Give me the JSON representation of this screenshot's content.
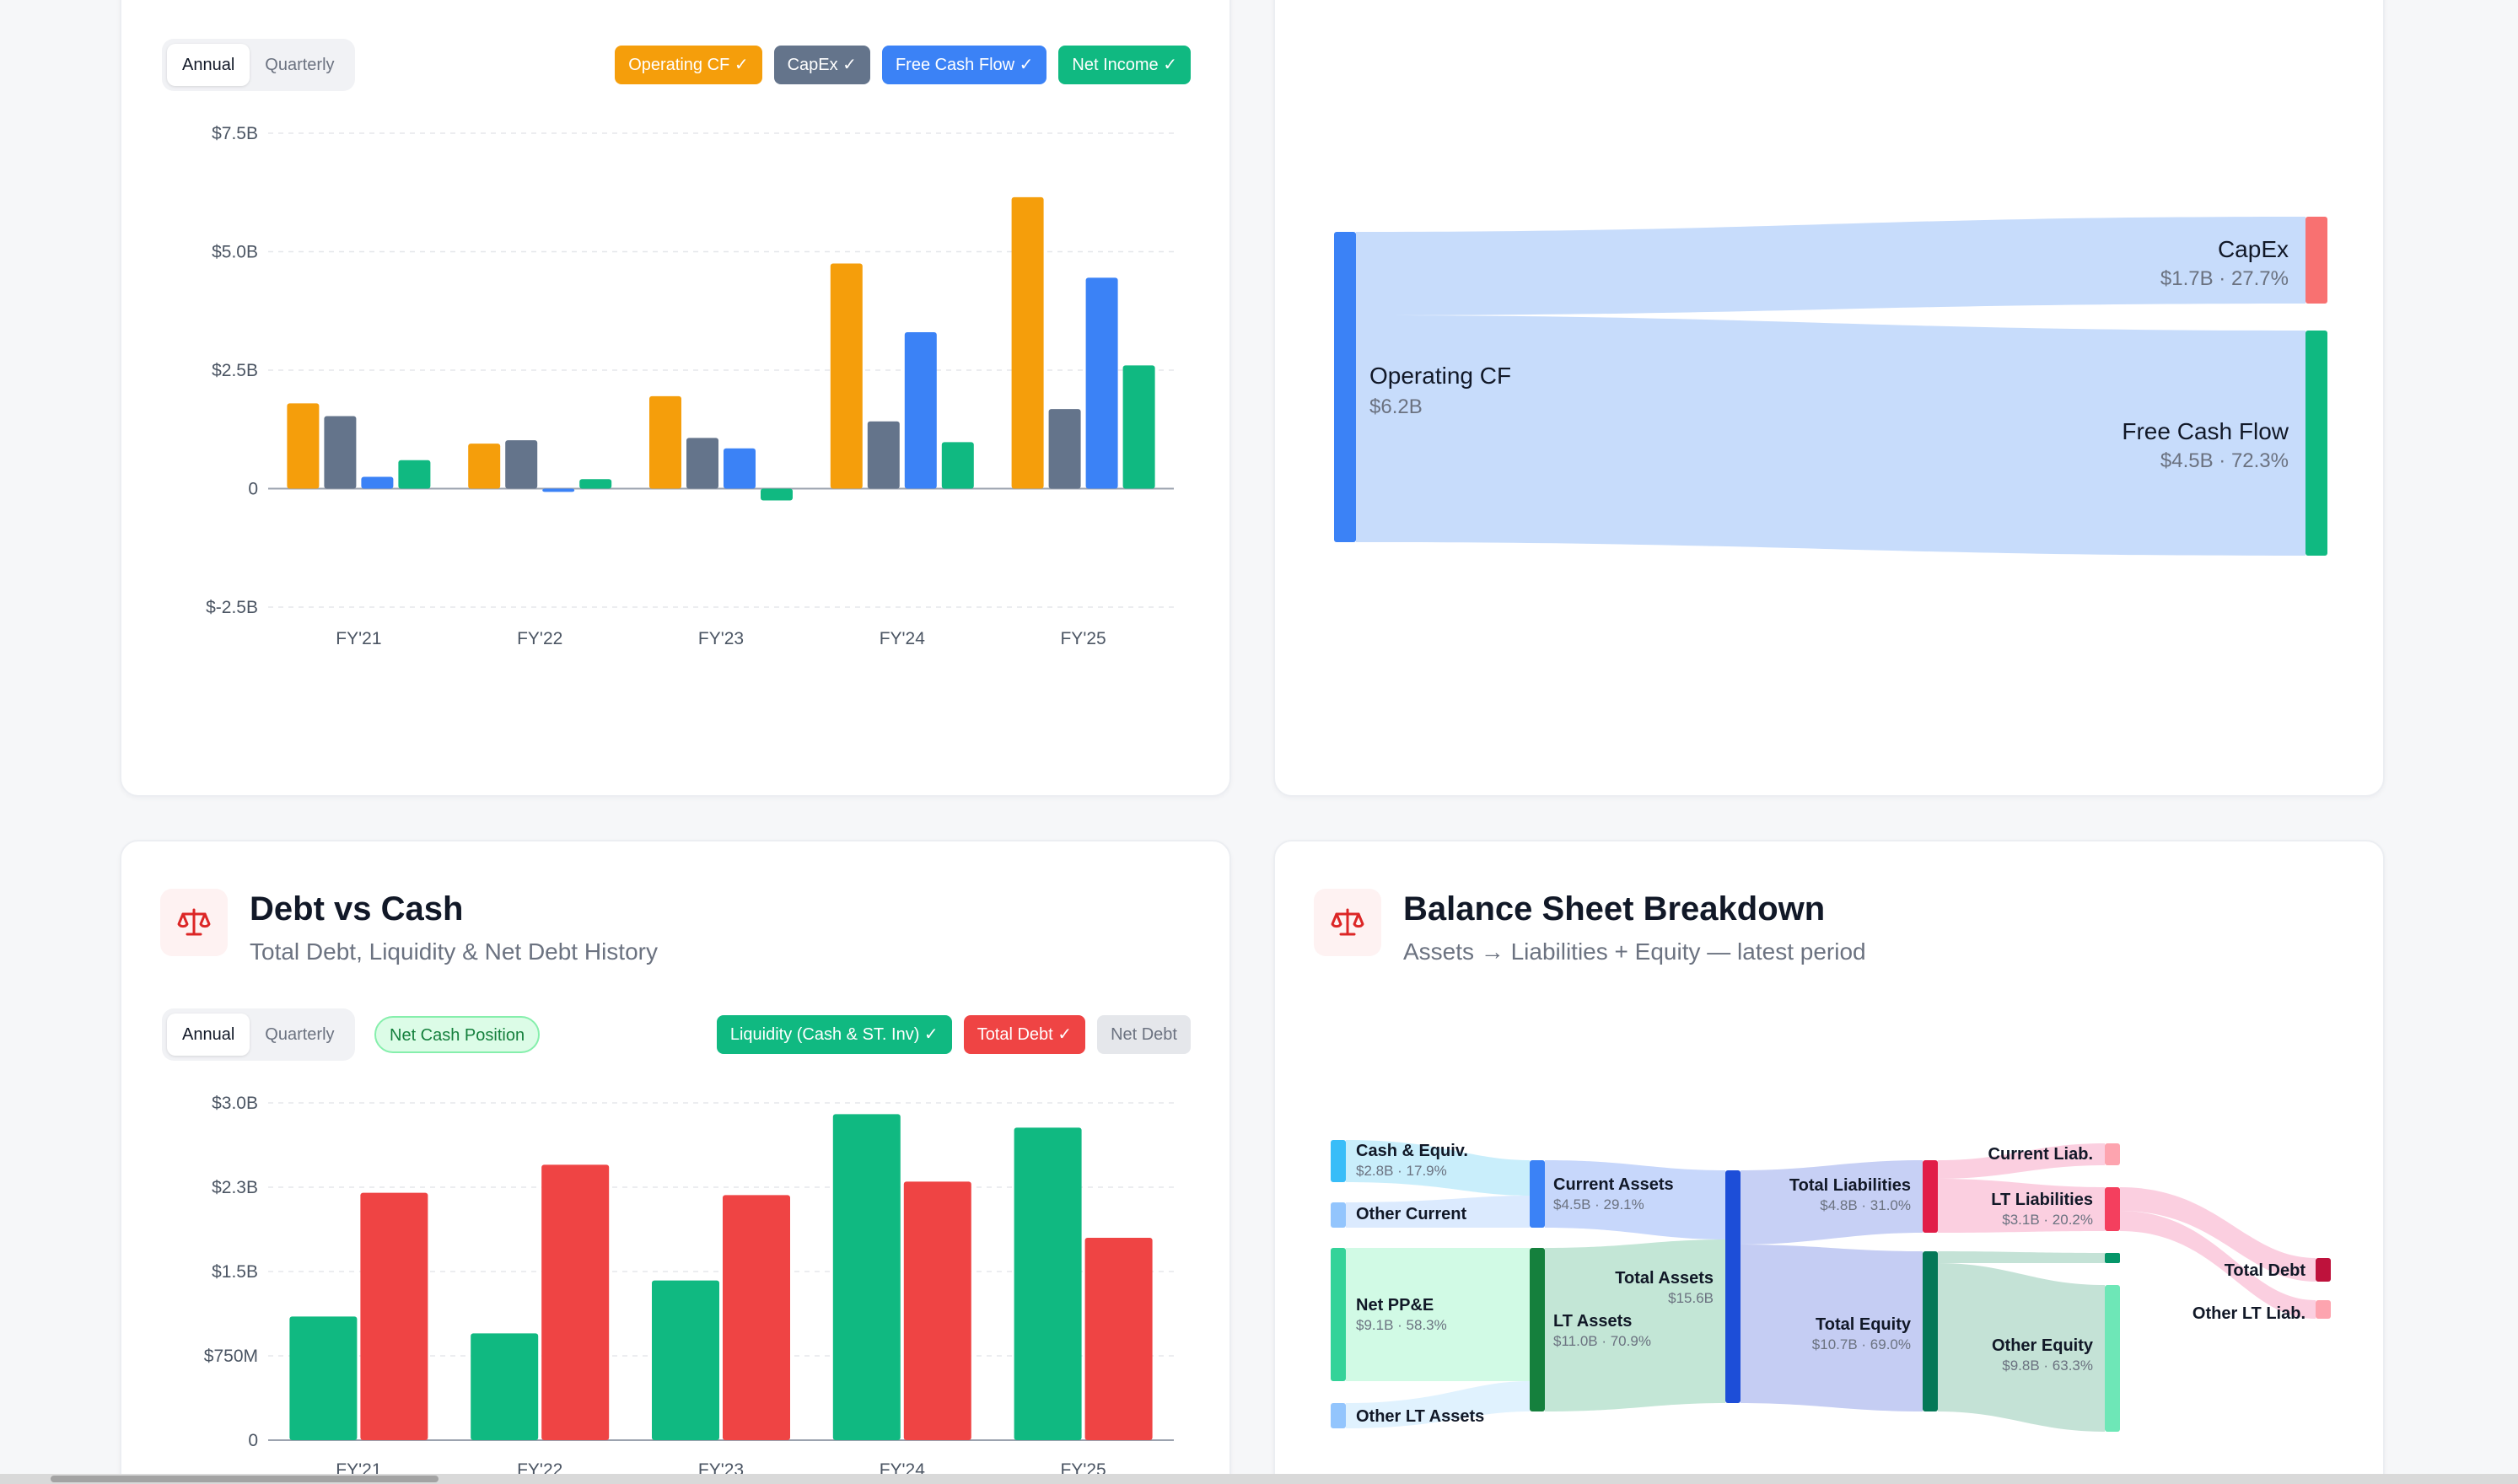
{
  "cashflow": {
    "toggle": [
      "Annual",
      "Quarterly"
    ],
    "legend": [
      {
        "label": "Operating CF ✓",
        "color": "#f59e0b"
      },
      {
        "label": "CapEx ✓",
        "color": "#64748b"
      },
      {
        "label": "Free Cash Flow ✓",
        "color": "#3b82f6"
      },
      {
        "label": "Net Income ✓",
        "color": "#10b981"
      }
    ]
  },
  "cf_sankey": {
    "source": {
      "name": "Operating CF",
      "value": "$6.2B",
      "color": "#3b82f6"
    },
    "targets": [
      {
        "name": "CapEx",
        "value": "$1.7B · 27.7%",
        "color": "#f87171"
      },
      {
        "name": "Free Cash Flow",
        "value": "$4.5B · 72.3%",
        "color": "#10b981"
      }
    ],
    "flow_color": "#c7dcfb"
  },
  "debt": {
    "title": "Debt vs Cash",
    "subtitle": "Total Debt, Liquidity & Net Debt History",
    "toggle": [
      "Annual",
      "Quarterly"
    ],
    "badge": "Net Cash Position",
    "legend": [
      {
        "label": "Liquidity (Cash & ST. Inv) ✓",
        "color": "#10b981",
        "off": false
      },
      {
        "label": "Total Debt ✓",
        "color": "#ef4444",
        "off": false
      },
      {
        "label": "Net Debt",
        "color": "#e5e7eb",
        "off": true
      }
    ]
  },
  "balance": {
    "title": "Balance Sheet Breakdown",
    "subtitle": "Assets → Liabilities + Equity — latest period",
    "nodes": {
      "cash": {
        "name": "Cash & Equiv.",
        "value": "$2.8B · 17.9%"
      },
      "other_current": {
        "name": "Other Current"
      },
      "net_ppe": {
        "name": "Net PP&E",
        "value": "$9.1B · 58.3%"
      },
      "other_lt": {
        "name": "Other LT Assets"
      },
      "current_assets": {
        "name": "Current Assets",
        "value": "$4.5B · 29.1%"
      },
      "lt_assets": {
        "name": "LT Assets",
        "value": "$11.0B · 70.9%"
      },
      "total_assets": {
        "name": "Total Assets",
        "value": "$15.6B"
      },
      "total_liab": {
        "name": "Total Liabilities",
        "value": "$4.8B · 31.0%"
      },
      "total_equity": {
        "name": "Total Equity",
        "value": "$10.7B · 69.0%"
      },
      "current_liab": {
        "name": "Current Liab."
      },
      "lt_liab": {
        "name": "LT Liabilities",
        "value": "$3.1B · 20.2%"
      },
      "other_equity": {
        "name": "Other Equity",
        "value": "$9.8B · 63.3%"
      },
      "total_debt": {
        "name": "Total Debt"
      },
      "other_lt_liab": {
        "name": "Other LT Liab."
      }
    }
  },
  "chart_data": [
    {
      "type": "bar",
      "categories": [
        "FY'21",
        "FY'22",
        "FY'23",
        "FY'24",
        "FY'25"
      ],
      "series": [
        {
          "name": "Operating CF",
          "color": "#f59e0b",
          "values": [
            1.8,
            0.95,
            1.95,
            4.75,
            6.15
          ]
        },
        {
          "name": "CapEx",
          "color": "#64748b",
          "values": [
            1.53,
            1.02,
            1.07,
            1.42,
            1.68
          ]
        },
        {
          "name": "Free Cash Flow",
          "color": "#3b82f6",
          "values": [
            0.25,
            -0.07,
            0.85,
            3.3,
            4.45
          ]
        },
        {
          "name": "Net Income",
          "color": "#10b981",
          "values": [
            0.6,
            0.2,
            -0.25,
            0.98,
            2.6
          ]
        }
      ],
      "ylim": [
        -2.5,
        7.5
      ],
      "yticks": [
        7.5,
        5.0,
        2.5,
        0,
        -2.5
      ],
      "ytick_labels": [
        "$7.5B",
        "$5.0B",
        "$2.5B",
        "0",
        "$-2.5B"
      ],
      "grid": true
    },
    {
      "type": "bar",
      "categories": [
        "FY'21",
        "FY'22",
        "FY'23",
        "FY'24",
        "FY'25"
      ],
      "series": [
        {
          "name": "Liquidity (Cash & ST. Inv)",
          "color": "#10b981",
          "values": [
            1.1,
            0.95,
            1.42,
            2.9,
            2.78
          ]
        },
        {
          "name": "Total Debt",
          "color": "#ef4444",
          "values": [
            2.2,
            2.45,
            2.18,
            2.3,
            1.8
          ]
        }
      ],
      "ylim": [
        0,
        3.0
      ],
      "yticks": [
        3.0,
        2.25,
        1.5,
        0.75,
        0
      ],
      "ytick_labels": [
        "$3.0B",
        "$2.3B",
        "$1.5B",
        "$750M",
        "0"
      ],
      "grid": true
    }
  ]
}
